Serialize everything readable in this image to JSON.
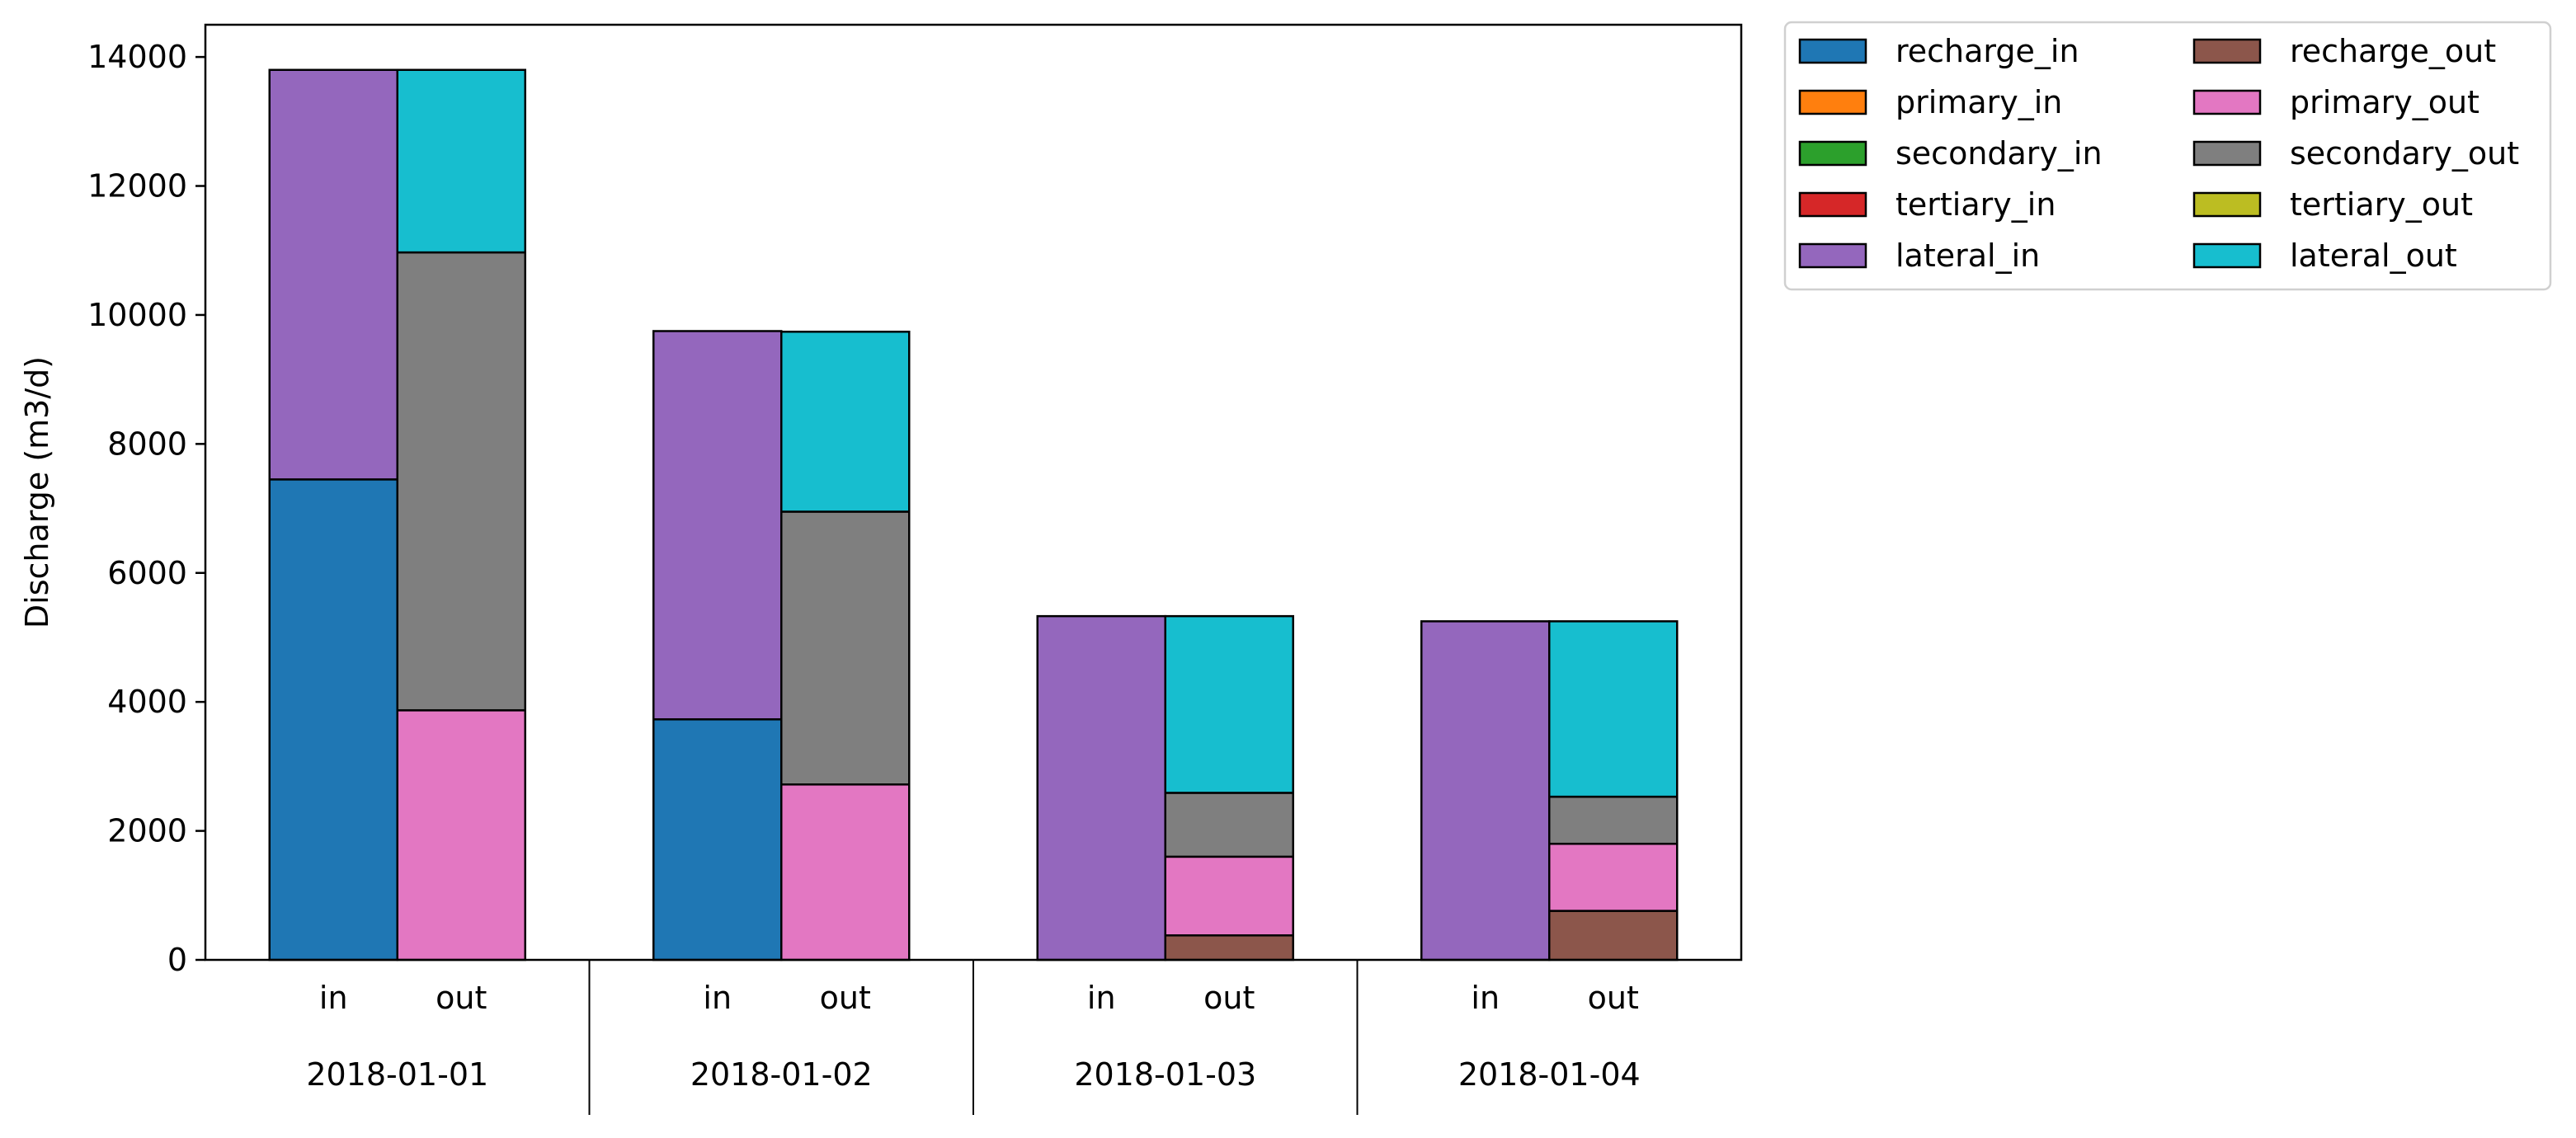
{
  "chart_data": {
    "type": "bar",
    "stacked": true,
    "ylabel": "Discharge (m3/d)",
    "ylim": [
      0,
      14500
    ],
    "yticks": [
      0,
      2000,
      4000,
      6000,
      8000,
      10000,
      12000,
      14000
    ],
    "grid": false,
    "legend_position": "outside-top-right",
    "categories": [
      "2018-01-01",
      "2018-01-02",
      "2018-01-03",
      "2018-01-04"
    ],
    "sub_categories": [
      "in",
      "out"
    ],
    "series": [
      {
        "name": "recharge_in",
        "group": "in",
        "color": "#1f77b4",
        "values": [
          7450,
          3730,
          0,
          0
        ]
      },
      {
        "name": "primary_in",
        "group": "in",
        "color": "#ff7f0e",
        "values": [
          0,
          0,
          0,
          0
        ]
      },
      {
        "name": "secondary_in",
        "group": "in",
        "color": "#2ca02c",
        "values": [
          0,
          0,
          0,
          0
        ]
      },
      {
        "name": "tertiary_in",
        "group": "in",
        "color": "#d62728",
        "values": [
          0,
          0,
          0,
          0
        ]
      },
      {
        "name": "lateral_in",
        "group": "in",
        "color": "#9467bd",
        "values": [
          6350,
          6020,
          5330,
          5250
        ]
      },
      {
        "name": "recharge_out",
        "group": "out",
        "color": "#8c564b",
        "values": [
          0,
          0,
          380,
          760
        ]
      },
      {
        "name": "primary_out",
        "group": "out",
        "color": "#e377c2",
        "values": [
          3870,
          2720,
          1220,
          1040
        ]
      },
      {
        "name": "secondary_out",
        "group": "out",
        "color": "#7f7f7f",
        "values": [
          7100,
          4230,
          990,
          730
        ]
      },
      {
        "name": "tertiary_out",
        "group": "out",
        "color": "#bcbd22",
        "values": [
          0,
          0,
          0,
          0
        ]
      },
      {
        "name": "lateral_out",
        "group": "out",
        "color": "#17becf",
        "values": [
          2830,
          2790,
          2740,
          2720
        ]
      }
    ]
  }
}
